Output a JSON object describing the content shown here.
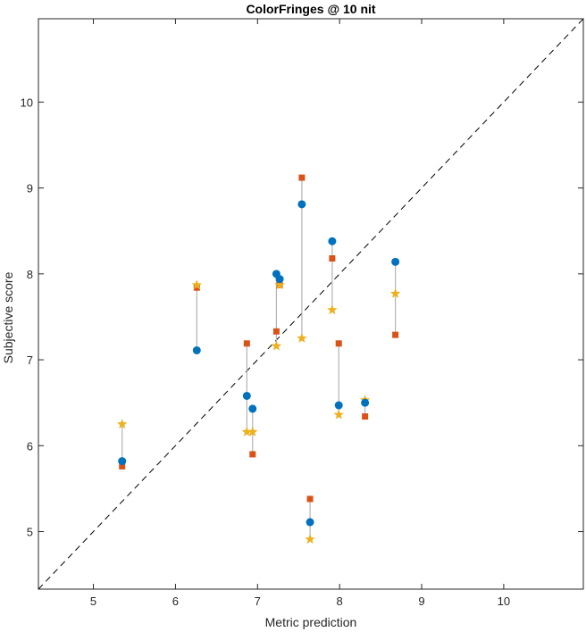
{
  "chart_data": {
    "type": "scatter",
    "title": "ColorFringes @ 10 nit",
    "xlabel": "Metric prediction",
    "ylabel": "Subjective score",
    "xlim": [
      4.33,
      10.97
    ],
    "ylim": [
      4.33,
      10.97
    ],
    "xticks": [
      5,
      6,
      7,
      8,
      9,
      10
    ],
    "yticks": [
      5,
      6,
      7,
      8,
      9,
      10
    ],
    "grid": false,
    "reference_line": "diagonal",
    "points": [
      {
        "x": 5.35,
        "blue": 5.82,
        "orange": 5.76,
        "yellow": 6.25
      },
      {
        "x": 6.26,
        "blue": 7.11,
        "orange": 7.84,
        "yellow": 7.87
      },
      {
        "x": 6.87,
        "blue": 6.58,
        "orange": 7.19,
        "yellow": 6.16
      },
      {
        "x": 6.94,
        "blue": 6.43,
        "orange": 5.9,
        "yellow": 6.16
      },
      {
        "x": 7.23,
        "blue": 8.0,
        "orange": 7.33,
        "yellow": 7.16
      },
      {
        "x": 7.27,
        "blue": 7.94,
        "orange": 7.87,
        "yellow": 7.87
      },
      {
        "x": 7.54,
        "blue": 8.81,
        "orange": 9.12,
        "yellow": 7.25
      },
      {
        "x": 7.64,
        "blue": 5.11,
        "orange": 5.38,
        "yellow": 4.91
      },
      {
        "x": 7.91,
        "blue": 8.38,
        "orange": 8.18,
        "yellow": 7.58
      },
      {
        "x": 7.99,
        "blue": 6.47,
        "orange": 7.19,
        "yellow": 6.36
      },
      {
        "x": 8.31,
        "blue": 6.5,
        "orange": 6.34,
        "yellow": 6.53
      },
      {
        "x": 8.68,
        "blue": 8.14,
        "orange": 7.29,
        "yellow": 7.77
      }
    ],
    "colors": {
      "blue": "#0072bd",
      "orange": "#d95319",
      "yellow": "#edb120",
      "connector": "#b3b3b3",
      "axis": "#262626"
    }
  }
}
